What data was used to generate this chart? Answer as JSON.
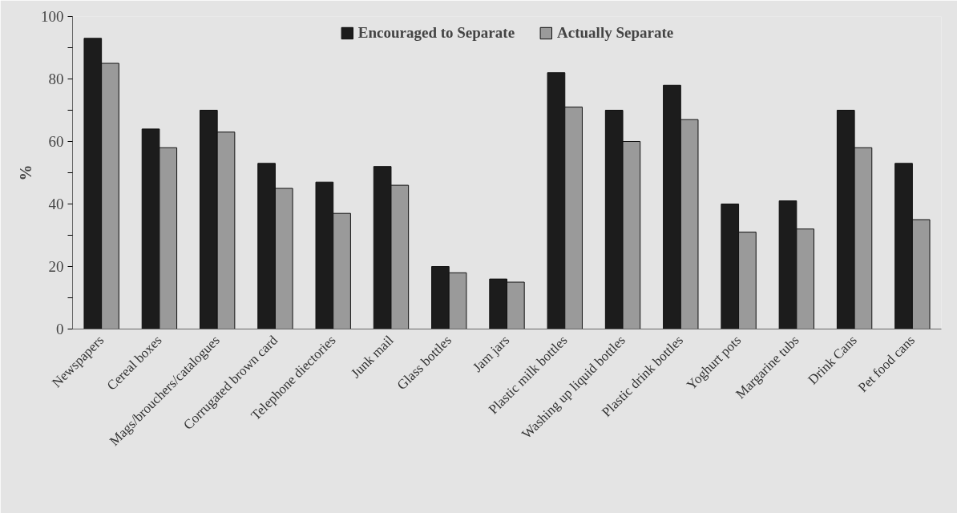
{
  "chart_data": {
    "type": "bar",
    "ylabel": "%",
    "categories": [
      "Newspapers",
      "Cereal boxes",
      "Mags/brouchers/catalogues",
      "Corrugated brown card",
      "Telephone diectories",
      "Junk mail",
      "Glass bottles",
      "Jam jars",
      "Plastic milk bottles",
      "Washing up liquid bottles",
      "Plastic drink bottles",
      "Yoghurt pots",
      "Margarine tubs",
      "Drink Cans",
      "Pet food cans"
    ],
    "series": [
      {
        "name": "Encouraged to Separate",
        "color": "#1c1c1c",
        "values": [
          93,
          64,
          70,
          53,
          47,
          52,
          20,
          16,
          82,
          70,
          78,
          40,
          41,
          70,
          53
        ]
      },
      {
        "name": "Actually Separate",
        "color": "#9a9a9a",
        "values": [
          85,
          58,
          63,
          45,
          37,
          46,
          18,
          15,
          71,
          60,
          67,
          31,
          32,
          58,
          35
        ]
      }
    ],
    "ylim": [
      0,
      100
    ],
    "yticks": [
      0,
      {
        "value": 10,
        "label": null
      },
      20,
      {
        "value": 30,
        "label": null
      },
      40,
      {
        "value": 50,
        "label": null
      },
      60,
      {
        "value": 70,
        "label": null
      },
      80,
      {
        "value": 90,
        "label": null
      },
      100
    ],
    "legend": "top"
  }
}
